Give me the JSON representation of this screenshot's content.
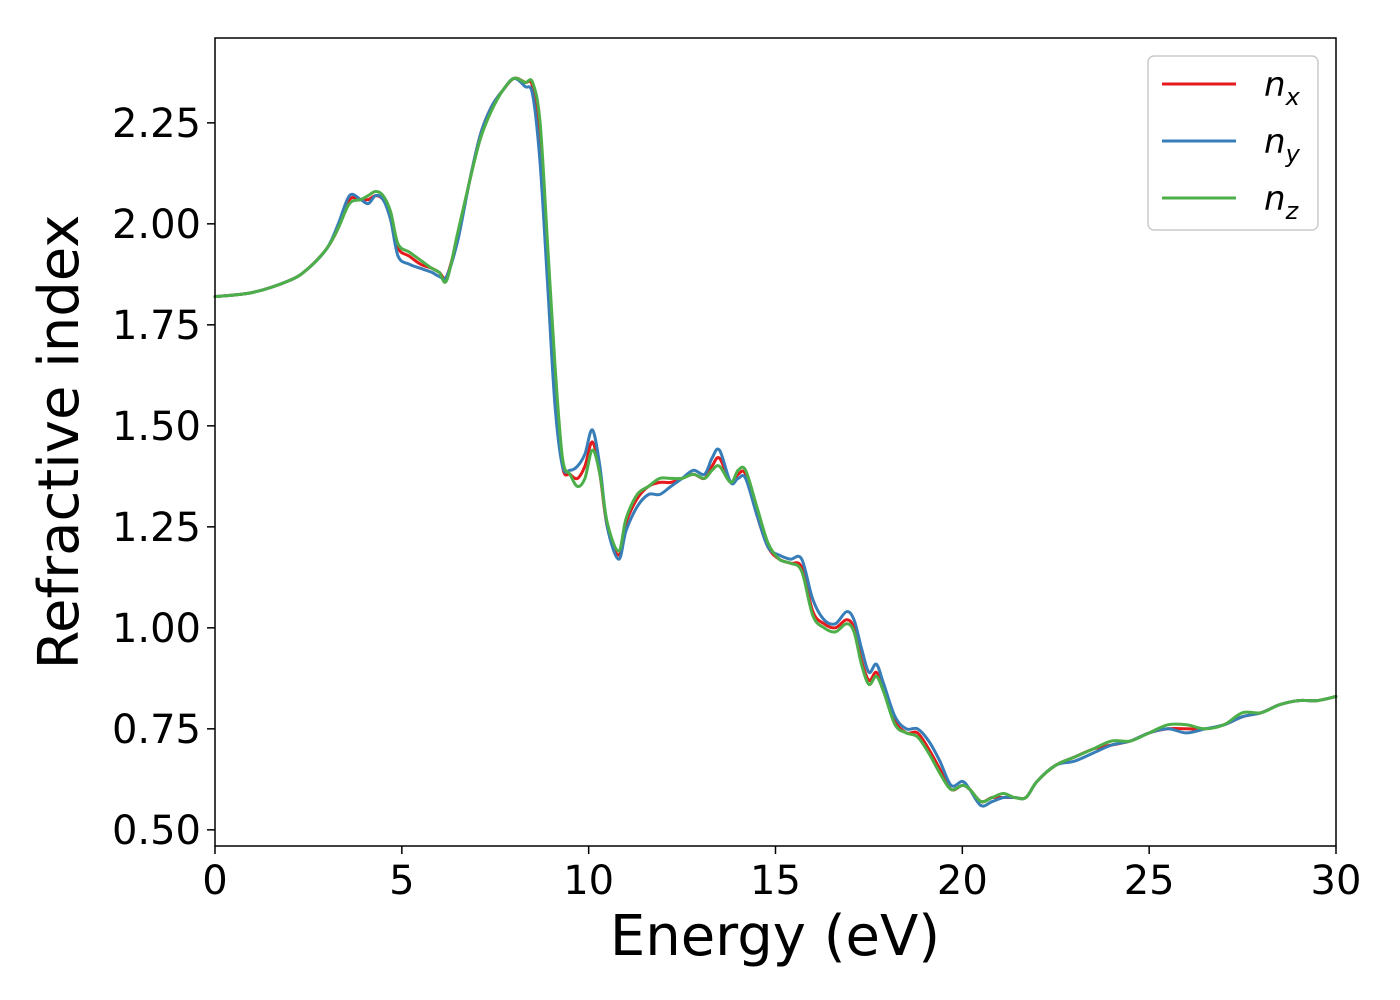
{
  "chart_data": {
    "type": "line",
    "title": "",
    "xlabel": "Energy (eV)",
    "ylabel": "Refractive index",
    "xlim": [
      0,
      30
    ],
    "ylim": [
      0.46,
      2.46
    ],
    "xticks": [
      0,
      5,
      10,
      15,
      20,
      25,
      30
    ],
    "yticks": [
      0.5,
      0.75,
      1.0,
      1.25,
      1.5,
      1.75,
      2.0,
      2.25
    ],
    "xtick_labels": [
      "0",
      "5",
      "10",
      "15",
      "20",
      "25",
      "30"
    ],
    "ytick_labels": [
      "0.50",
      "0.75",
      "1.00",
      "1.25",
      "1.50",
      "1.75",
      "2.00",
      "2.25"
    ],
    "grid": false,
    "legend": {
      "placement": "top-right"
    },
    "series": [
      {
        "name": "n_x",
        "label_base": "n",
        "label_sub": "x",
        "color": "#e41a1c",
        "x": [
          0,
          1,
          2,
          2.5,
          3,
          3.3,
          3.6,
          3.9,
          4.1,
          4.3,
          4.5,
          4.7,
          4.9,
          5.2,
          5.5,
          5.8,
          6.0,
          6.2,
          6.5,
          6.8,
          7.1,
          7.4,
          7.7,
          8.0,
          8.3,
          8.5,
          8.7,
          8.9,
          9.1,
          9.3,
          9.5,
          9.7,
          9.9,
          10.1,
          10.3,
          10.5,
          10.8,
          11.0,
          11.3,
          11.6,
          11.9,
          12.2,
          12.5,
          12.8,
          13.1,
          13.3,
          13.5,
          13.8,
          14.0,
          14.2,
          14.5,
          14.8,
          15.1,
          15.4,
          15.7,
          16.0,
          16.3,
          16.6,
          16.9,
          17.1,
          17.3,
          17.5,
          17.7,
          17.9,
          18.2,
          18.5,
          18.8,
          19.1,
          19.4,
          19.7,
          20.0,
          20.2,
          20.5,
          20.8,
          21.1,
          21.4,
          21.7,
          22.0,
          22.5,
          23.0,
          23.5,
          24.0,
          24.5,
          25.0,
          25.5,
          26.0,
          26.5,
          27.0,
          27.5,
          28.0,
          28.5,
          29.0,
          29.5,
          30.0
        ],
        "y": [
          1.82,
          1.83,
          1.86,
          1.89,
          1.94,
          1.99,
          2.06,
          2.06,
          2.06,
          2.07,
          2.06,
          2.02,
          1.94,
          1.92,
          1.9,
          1.89,
          1.88,
          1.87,
          1.97,
          2.1,
          2.22,
          2.29,
          2.33,
          2.36,
          2.35,
          2.34,
          2.2,
          1.9,
          1.6,
          1.4,
          1.38,
          1.37,
          1.4,
          1.46,
          1.38,
          1.25,
          1.18,
          1.26,
          1.32,
          1.35,
          1.36,
          1.36,
          1.37,
          1.38,
          1.37,
          1.4,
          1.42,
          1.36,
          1.38,
          1.38,
          1.28,
          1.2,
          1.17,
          1.16,
          1.15,
          1.04,
          1.01,
          1.0,
          1.02,
          1.0,
          0.92,
          0.87,
          0.89,
          0.85,
          0.77,
          0.74,
          0.74,
          0.7,
          0.65,
          0.6,
          0.61,
          0.6,
          0.57,
          0.58,
          0.58,
          0.58,
          0.58,
          0.62,
          0.66,
          0.68,
          0.7,
          0.71,
          0.72,
          0.74,
          0.75,
          0.75,
          0.75,
          0.76,
          0.78,
          0.79,
          0.81,
          0.82,
          0.82,
          0.83
        ]
      },
      {
        "name": "n_y",
        "label_base": "n",
        "label_sub": "y",
        "color": "#377eb8",
        "x": [
          0,
          1,
          2,
          2.5,
          3,
          3.3,
          3.6,
          3.9,
          4.1,
          4.3,
          4.5,
          4.7,
          4.9,
          5.2,
          5.5,
          5.8,
          6.0,
          6.2,
          6.5,
          6.8,
          7.1,
          7.4,
          7.7,
          8.0,
          8.3,
          8.5,
          8.7,
          8.9,
          9.1,
          9.3,
          9.5,
          9.7,
          9.9,
          10.1,
          10.3,
          10.5,
          10.8,
          11.0,
          11.3,
          11.6,
          11.9,
          12.2,
          12.5,
          12.8,
          13.1,
          13.3,
          13.5,
          13.8,
          14.0,
          14.2,
          14.5,
          14.8,
          15.1,
          15.4,
          15.7,
          16.0,
          16.3,
          16.6,
          16.9,
          17.1,
          17.3,
          17.5,
          17.7,
          17.9,
          18.2,
          18.5,
          18.8,
          19.1,
          19.4,
          19.7,
          20.0,
          20.2,
          20.5,
          20.8,
          21.1,
          21.4,
          21.7,
          22.0,
          22.5,
          23.0,
          23.5,
          24.0,
          24.5,
          25.0,
          25.5,
          26.0,
          26.5,
          27.0,
          27.5,
          28.0,
          28.5,
          29.0,
          29.5,
          30.0
        ],
        "y": [
          1.82,
          1.83,
          1.86,
          1.89,
          1.94,
          2.0,
          2.07,
          2.06,
          2.05,
          2.07,
          2.06,
          2.01,
          1.92,
          1.9,
          1.89,
          1.88,
          1.87,
          1.87,
          1.96,
          2.1,
          2.22,
          2.29,
          2.33,
          2.36,
          2.34,
          2.32,
          2.15,
          1.85,
          1.55,
          1.4,
          1.39,
          1.4,
          1.43,
          1.49,
          1.4,
          1.25,
          1.17,
          1.24,
          1.3,
          1.33,
          1.33,
          1.35,
          1.37,
          1.39,
          1.38,
          1.42,
          1.44,
          1.36,
          1.37,
          1.37,
          1.28,
          1.2,
          1.18,
          1.17,
          1.17,
          1.07,
          1.02,
          1.01,
          1.04,
          1.02,
          0.95,
          0.89,
          0.91,
          0.86,
          0.78,
          0.75,
          0.75,
          0.72,
          0.67,
          0.61,
          0.62,
          0.6,
          0.56,
          0.57,
          0.58,
          0.58,
          0.58,
          0.62,
          0.66,
          0.67,
          0.69,
          0.71,
          0.72,
          0.74,
          0.75,
          0.74,
          0.75,
          0.76,
          0.78,
          0.79,
          0.81,
          0.82,
          0.82,
          0.83
        ]
      },
      {
        "name": "n_z",
        "label_base": "n",
        "label_sub": "z",
        "color": "#4daf4a",
        "x": [
          0,
          1,
          2,
          2.5,
          3,
          3.3,
          3.6,
          3.9,
          4.1,
          4.3,
          4.5,
          4.7,
          4.9,
          5.2,
          5.5,
          5.8,
          6.0,
          6.2,
          6.5,
          6.8,
          7.1,
          7.4,
          7.7,
          8.0,
          8.3,
          8.5,
          8.7,
          8.9,
          9.1,
          9.3,
          9.5,
          9.7,
          9.9,
          10.1,
          10.3,
          10.5,
          10.8,
          11.0,
          11.3,
          11.6,
          11.9,
          12.2,
          12.5,
          12.8,
          13.1,
          13.3,
          13.5,
          13.8,
          14.0,
          14.2,
          14.5,
          14.8,
          15.1,
          15.4,
          15.7,
          16.0,
          16.3,
          16.6,
          16.9,
          17.1,
          17.3,
          17.5,
          17.7,
          17.9,
          18.2,
          18.5,
          18.8,
          19.1,
          19.4,
          19.7,
          20.0,
          20.2,
          20.5,
          20.8,
          21.1,
          21.4,
          21.7,
          22.0,
          22.5,
          23.0,
          23.5,
          24.0,
          24.5,
          25.0,
          25.5,
          26.0,
          26.5,
          27.0,
          27.5,
          28.0,
          28.5,
          29.0,
          29.5,
          30.0
        ],
        "y": [
          1.82,
          1.83,
          1.86,
          1.89,
          1.94,
          1.99,
          2.05,
          2.06,
          2.07,
          2.08,
          2.07,
          2.03,
          1.95,
          1.93,
          1.91,
          1.89,
          1.88,
          1.86,
          1.98,
          2.1,
          2.21,
          2.28,
          2.33,
          2.36,
          2.35,
          2.35,
          2.25,
          1.95,
          1.65,
          1.42,
          1.38,
          1.35,
          1.37,
          1.44,
          1.38,
          1.26,
          1.19,
          1.27,
          1.33,
          1.35,
          1.37,
          1.37,
          1.37,
          1.38,
          1.37,
          1.39,
          1.4,
          1.36,
          1.39,
          1.39,
          1.3,
          1.21,
          1.17,
          1.16,
          1.14,
          1.03,
          1.0,
          0.99,
          1.01,
          0.99,
          0.91,
          0.86,
          0.88,
          0.84,
          0.76,
          0.74,
          0.73,
          0.69,
          0.64,
          0.6,
          0.61,
          0.6,
          0.57,
          0.58,
          0.59,
          0.58,
          0.58,
          0.62,
          0.66,
          0.68,
          0.7,
          0.72,
          0.72,
          0.74,
          0.76,
          0.76,
          0.75,
          0.76,
          0.79,
          0.79,
          0.81,
          0.82,
          0.82,
          0.83
        ]
      }
    ]
  }
}
